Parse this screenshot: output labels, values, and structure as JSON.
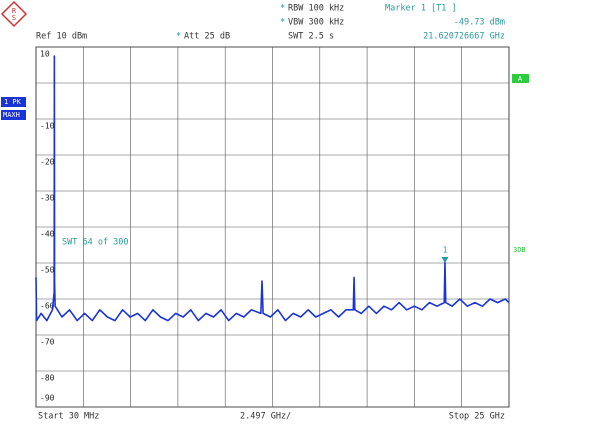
{
  "chart_data": {
    "type": "line",
    "header": {
      "rbw": "RBW 100 kHz",
      "vbw": "VBW 300 kHz",
      "swt": "SWT 2.5 s",
      "ref": "Ref 10 dBm",
      "att": "Att 25 dB",
      "marker_title": "Marker 1 [T1 ]"
    },
    "sweep": "SWT 64 of 300",
    "trace_label": "1 PK",
    "trace_mode": "MAXH",
    "side_a": "A",
    "side_3db": "3DB",
    "start_label": "Start 30 MHz",
    "span_label": "2.497 GHz/",
    "stop_label": "Stop 25 GHz",
    "xlim": [
      0.03,
      25
    ],
    "x_divisions": 10,
    "ylim": [
      -90,
      10
    ],
    "yticks": [
      10,
      {
        "value": 0,
        "label": null
      },
      -10,
      -20,
      -30,
      -40,
      -50,
      -60,
      -70,
      -80,
      -90
    ],
    "grid": true,
    "x": [
      0.03,
      0.06,
      0.3,
      0.6,
      0.9,
      0.99,
      1.0,
      1.01,
      1.04,
      1.4,
      1.8,
      2.2,
      2.6,
      3.0,
      3.4,
      3.8,
      4.2,
      4.6,
      5.0,
      5.4,
      5.8,
      6.2,
      6.6,
      7.0,
      7.4,
      7.8,
      8.2,
      8.6,
      9.0,
      9.4,
      9.8,
      10.2,
      10.6,
      11.0,
      11.4,
      11.9,
      11.96,
      12.02,
      12.4,
      12.8,
      13.2,
      13.6,
      14.0,
      14.4,
      14.8,
      15.2,
      15.6,
      16.0,
      16.4,
      16.78,
      16.82,
      16.86,
      17.2,
      17.6,
      18.0,
      18.4,
      18.8,
      19.2,
      19.6,
      20.0,
      20.4,
      20.8,
      21.2,
      21.58,
      21.62,
      21.66,
      22.0,
      22.4,
      22.8,
      23.2,
      23.6,
      24.0,
      24.4,
      24.8,
      25.0
    ],
    "series": [
      {
        "name": "1 PK MAXH",
        "color": "#1a34d6",
        "values": [
          -54,
          -66,
          -64,
          -66,
          -63,
          -58,
          7.5,
          -55,
          -62,
          -65,
          -63,
          -66,
          -64,
          -66,
          -63,
          -65,
          -66,
          -63,
          -65,
          -64,
          -66,
          -63,
          -65,
          -66,
          -64,
          -65,
          -63,
          -66,
          -64,
          -65,
          -63,
          -66,
          -64,
          -65,
          -63,
          -64,
          -55,
          -64,
          -65,
          -63,
          -66,
          -64,
          -65,
          -63,
          -65,
          -64,
          -63,
          -65,
          -63,
          -63,
          -54,
          -63,
          -64,
          -62,
          -64,
          -62,
          -63,
          -61,
          -63,
          -62,
          -63,
          -61,
          -62,
          -61,
          -49.73,
          -61,
          -62,
          -60,
          -62,
          -61,
          -62,
          -60,
          -61,
          -60,
          -61
        ]
      }
    ],
    "marker": {
      "label": "1",
      "x": 21.620726667,
      "y": -49.73,
      "x_label": "21.620726667 GHz",
      "y_label": "-49.73 dBm",
      "color": "#2a9a9a"
    }
  }
}
